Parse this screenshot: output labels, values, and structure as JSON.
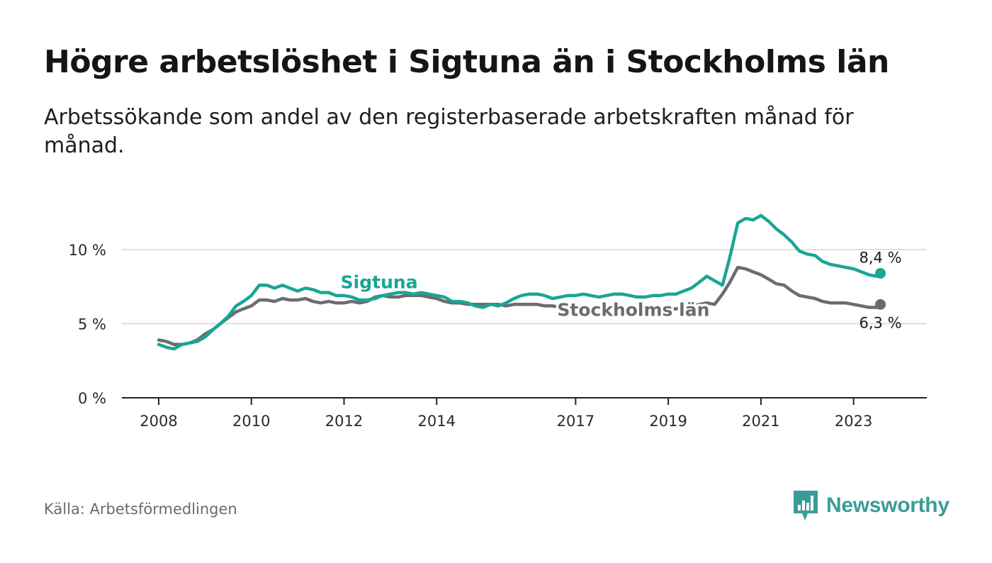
{
  "title": "Högre arbetslöshet i Sigtuna än i Stockholms län",
  "subtitle": "Arbetssökande som andel av den registerbaserade arbetskraften månad för månad.",
  "source": "Källa: Arbetsförmedlingen",
  "brand": {
    "name": "Newsworthy",
    "logo_icon": "bar-chart-speech-bubble-icon",
    "color": "#3a9c97"
  },
  "chart_data": {
    "type": "line",
    "title": "Högre arbetslöshet i Sigtuna än i Stockholms län",
    "xlabel": "",
    "ylabel": "",
    "ylim": [
      0,
      13
    ],
    "xlim": [
      2008.0,
      2024.0
    ],
    "grid": true,
    "y_ticks": [
      {
        "value": 0,
        "label": "0 %"
      },
      {
        "value": 5,
        "label": "5 %"
      },
      {
        "value": 10,
        "label": "10 %"
      }
    ],
    "x_ticks": [
      {
        "value": 2008,
        "label": "2008"
      },
      {
        "value": 2010,
        "label": "2010"
      },
      {
        "value": 2012,
        "label": "2012"
      },
      {
        "value": 2014,
        "label": "2014"
      },
      {
        "value": 2017,
        "label": "2017"
      },
      {
        "value": 2019,
        "label": "2019"
      },
      {
        "value": 2021,
        "label": "2021"
      },
      {
        "value": 2023,
        "label": "2023"
      }
    ],
    "series": [
      {
        "name": "Stockholms län",
        "color": "#6b6b70",
        "end_label": "6,3 %",
        "points": [
          [
            2008.0,
            3.9
          ],
          [
            2008.17,
            3.8
          ],
          [
            2008.33,
            3.6
          ],
          [
            2008.5,
            3.6
          ],
          [
            2008.67,
            3.7
          ],
          [
            2008.83,
            3.9
          ],
          [
            2009.0,
            4.3
          ],
          [
            2009.17,
            4.6
          ],
          [
            2009.33,
            5.0
          ],
          [
            2009.5,
            5.4
          ],
          [
            2009.67,
            5.8
          ],
          [
            2009.83,
            6.0
          ],
          [
            2010.0,
            6.2
          ],
          [
            2010.17,
            6.6
          ],
          [
            2010.33,
            6.6
          ],
          [
            2010.5,
            6.5
          ],
          [
            2010.67,
            6.7
          ],
          [
            2010.83,
            6.6
          ],
          [
            2011.0,
            6.6
          ],
          [
            2011.17,
            6.7
          ],
          [
            2011.33,
            6.5
          ],
          [
            2011.5,
            6.4
          ],
          [
            2011.67,
            6.5
          ],
          [
            2011.83,
            6.4
          ],
          [
            2012.0,
            6.4
          ],
          [
            2012.17,
            6.5
          ],
          [
            2012.33,
            6.4
          ],
          [
            2012.5,
            6.5
          ],
          [
            2012.67,
            6.8
          ],
          [
            2012.83,
            6.9
          ],
          [
            2013.0,
            6.8
          ],
          [
            2013.17,
            6.8
          ],
          [
            2013.33,
            6.9
          ],
          [
            2013.5,
            6.9
          ],
          [
            2013.67,
            6.9
          ],
          [
            2013.83,
            6.8
          ],
          [
            2014.0,
            6.7
          ],
          [
            2014.17,
            6.5
          ],
          [
            2014.33,
            6.4
          ],
          [
            2014.5,
            6.4
          ],
          [
            2014.67,
            6.3
          ],
          [
            2014.83,
            6.3
          ],
          [
            2015.0,
            6.3
          ],
          [
            2015.17,
            6.3
          ],
          [
            2015.33,
            6.3
          ],
          [
            2015.5,
            6.2
          ],
          [
            2015.67,
            6.3
          ],
          [
            2015.83,
            6.3
          ],
          [
            2016.0,
            6.3
          ],
          [
            2016.17,
            6.3
          ],
          [
            2016.33,
            6.2
          ],
          [
            2016.5,
            6.2
          ],
          [
            2016.67,
            6.1
          ],
          [
            2016.83,
            6.0
          ],
          [
            2017.0,
            6.0
          ],
          [
            2017.17,
            6.0
          ],
          [
            2017.33,
            6.0
          ],
          [
            2017.5,
            6.0
          ],
          [
            2017.67,
            6.0
          ],
          [
            2017.83,
            6.0
          ],
          [
            2018.0,
            6.0
          ],
          [
            2018.17,
            6.0
          ],
          [
            2018.33,
            6.0
          ],
          [
            2018.5,
            6.0
          ],
          [
            2018.67,
            6.0
          ],
          [
            2018.83,
            6.0
          ],
          [
            2019.0,
            6.0
          ],
          [
            2019.17,
            6.0
          ],
          [
            2019.33,
            6.1
          ],
          [
            2019.5,
            6.2
          ],
          [
            2019.67,
            6.3
          ],
          [
            2019.83,
            6.4
          ],
          [
            2020.0,
            6.3
          ],
          [
            2020.17,
            7.0
          ],
          [
            2020.33,
            7.8
          ],
          [
            2020.5,
            8.8
          ],
          [
            2020.67,
            8.7
          ],
          [
            2020.83,
            8.5
          ],
          [
            2021.0,
            8.3
          ],
          [
            2021.17,
            8.0
          ],
          [
            2021.33,
            7.7
          ],
          [
            2021.5,
            7.6
          ],
          [
            2021.67,
            7.2
          ],
          [
            2021.83,
            6.9
          ],
          [
            2022.0,
            6.8
          ],
          [
            2022.17,
            6.7
          ],
          [
            2022.33,
            6.5
          ],
          [
            2022.5,
            6.4
          ],
          [
            2022.67,
            6.4
          ],
          [
            2022.83,
            6.4
          ],
          [
            2023.0,
            6.3
          ],
          [
            2023.17,
            6.2
          ],
          [
            2023.33,
            6.1
          ],
          [
            2023.5,
            6.1
          ],
          [
            2023.58,
            6.3
          ]
        ]
      },
      {
        "name": "Sigtuna",
        "color": "#1aa595",
        "end_label": "8,4 %",
        "points": [
          [
            2008.0,
            3.6
          ],
          [
            2008.17,
            3.4
          ],
          [
            2008.33,
            3.3
          ],
          [
            2008.5,
            3.6
          ],
          [
            2008.67,
            3.7
          ],
          [
            2008.83,
            3.8
          ],
          [
            2009.0,
            4.1
          ],
          [
            2009.17,
            4.6
          ],
          [
            2009.33,
            5.0
          ],
          [
            2009.5,
            5.5
          ],
          [
            2009.67,
            6.2
          ],
          [
            2009.83,
            6.5
          ],
          [
            2010.0,
            6.9
          ],
          [
            2010.17,
            7.6
          ],
          [
            2010.33,
            7.6
          ],
          [
            2010.5,
            7.4
          ],
          [
            2010.67,
            7.6
          ],
          [
            2010.83,
            7.4
          ],
          [
            2011.0,
            7.2
          ],
          [
            2011.17,
            7.4
          ],
          [
            2011.33,
            7.3
          ],
          [
            2011.5,
            7.1
          ],
          [
            2011.67,
            7.1
          ],
          [
            2011.83,
            6.9
          ],
          [
            2012.0,
            6.9
          ],
          [
            2012.17,
            6.8
          ],
          [
            2012.33,
            6.6
          ],
          [
            2012.5,
            6.6
          ],
          [
            2012.67,
            6.7
          ],
          [
            2012.83,
            6.9
          ],
          [
            2013.0,
            7.0
          ],
          [
            2013.17,
            7.1
          ],
          [
            2013.33,
            7.1
          ],
          [
            2013.5,
            7.0
          ],
          [
            2013.67,
            7.1
          ],
          [
            2013.83,
            7.0
          ],
          [
            2014.0,
            6.9
          ],
          [
            2014.17,
            6.8
          ],
          [
            2014.33,
            6.5
          ],
          [
            2014.5,
            6.5
          ],
          [
            2014.67,
            6.4
          ],
          [
            2014.83,
            6.2
          ],
          [
            2015.0,
            6.1
          ],
          [
            2015.17,
            6.3
          ],
          [
            2015.33,
            6.2
          ],
          [
            2015.5,
            6.4
          ],
          [
            2015.67,
            6.7
          ],
          [
            2015.83,
            6.9
          ],
          [
            2016.0,
            7.0
          ],
          [
            2016.17,
            7.0
          ],
          [
            2016.33,
            6.9
          ],
          [
            2016.5,
            6.7
          ],
          [
            2016.67,
            6.8
          ],
          [
            2016.83,
            6.9
          ],
          [
            2017.0,
            6.9
          ],
          [
            2017.17,
            7.0
          ],
          [
            2017.33,
            6.9
          ],
          [
            2017.5,
            6.8
          ],
          [
            2017.67,
            6.9
          ],
          [
            2017.83,
            7.0
          ],
          [
            2018.0,
            7.0
          ],
          [
            2018.17,
            6.9
          ],
          [
            2018.33,
            6.8
          ],
          [
            2018.5,
            6.8
          ],
          [
            2018.67,
            6.9
          ],
          [
            2018.83,
            6.9
          ],
          [
            2019.0,
            7.0
          ],
          [
            2019.17,
            7.0
          ],
          [
            2019.33,
            7.2
          ],
          [
            2019.5,
            7.4
          ],
          [
            2019.67,
            7.8
          ],
          [
            2019.83,
            8.2
          ],
          [
            2020.0,
            7.9
          ],
          [
            2020.17,
            7.6
          ],
          [
            2020.33,
            9.5
          ],
          [
            2020.5,
            11.8
          ],
          [
            2020.67,
            12.1
          ],
          [
            2020.83,
            12.0
          ],
          [
            2021.0,
            12.3
          ],
          [
            2021.17,
            11.9
          ],
          [
            2021.33,
            11.4
          ],
          [
            2021.5,
            11.0
          ],
          [
            2021.67,
            10.5
          ],
          [
            2021.83,
            9.9
          ],
          [
            2022.0,
            9.7
          ],
          [
            2022.17,
            9.6
          ],
          [
            2022.33,
            9.2
          ],
          [
            2022.5,
            9.0
          ],
          [
            2022.67,
            8.9
          ],
          [
            2022.83,
            8.8
          ],
          [
            2023.0,
            8.7
          ],
          [
            2023.17,
            8.5
          ],
          [
            2023.33,
            8.3
          ],
          [
            2023.5,
            8.2
          ],
          [
            2023.58,
            8.4
          ]
        ]
      }
    ],
    "annotations": [
      {
        "text": "Sigtuna",
        "series": "Sigtuna",
        "color": "#1aa595",
        "at": [
          2013.15,
          7.0
        ]
      },
      {
        "text": "Stockholms län",
        "series": "Stockholms län",
        "color": "#6b6b70",
        "at": [
          2017.0,
          6.0
        ]
      }
    ]
  }
}
